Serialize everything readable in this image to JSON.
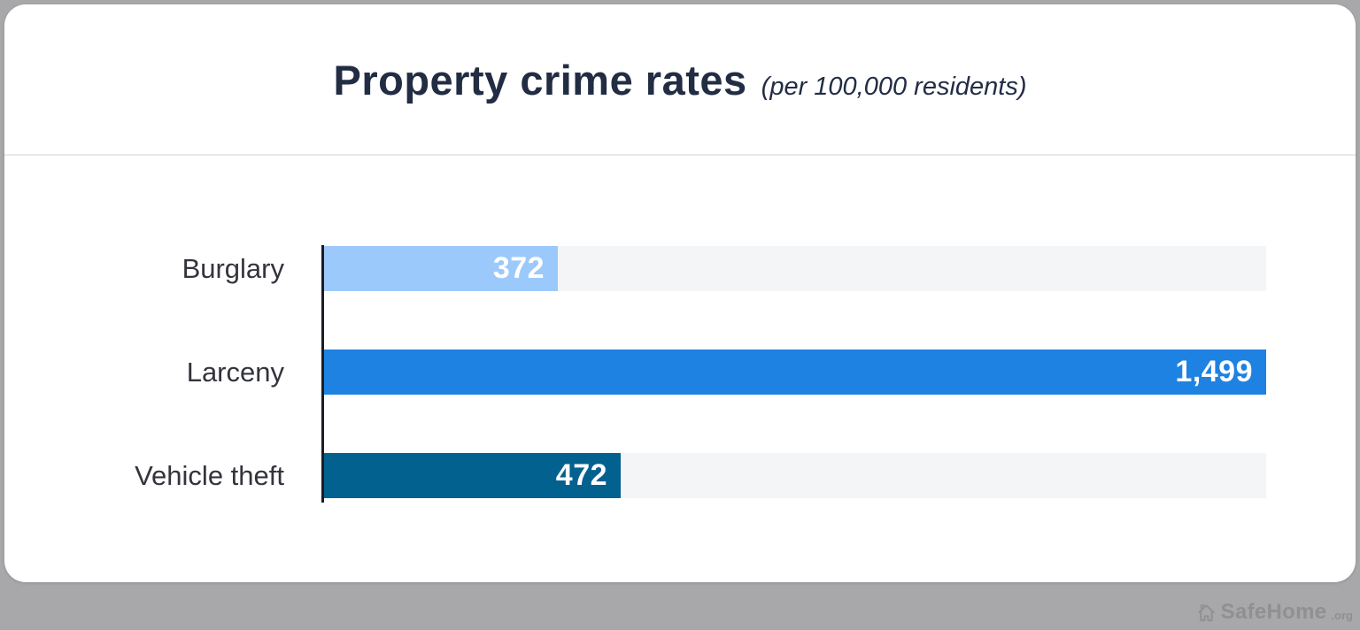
{
  "page": {
    "background_color": "#a8a8ab",
    "card_color": "#ffffff"
  },
  "header": {
    "title": "Property crime rates",
    "subtitle": "(per 100,000 residents)",
    "title_color": "#222d44"
  },
  "chart_data": {
    "type": "bar",
    "orientation": "horizontal",
    "title": "Property crime rates",
    "subtitle": "(per 100,000 residents)",
    "categories": [
      "Burglary",
      "Larceny",
      "Vehicle theft"
    ],
    "values": [
      372,
      1499,
      472
    ],
    "value_labels": [
      "372",
      "1,499",
      "472"
    ],
    "bar_colors": [
      "#9cc9fb",
      "#1e82e2",
      "#03618f"
    ],
    "track_color": "#f4f5f7",
    "xlim": [
      0,
      1499
    ],
    "grid": false,
    "legend": false,
    "value_label_position": "inside-end",
    "value_label_color": "#ffffff"
  },
  "watermark": {
    "icon": "home-icon",
    "brand": "SafeHome",
    "tld": ".org",
    "color": "#909093"
  }
}
